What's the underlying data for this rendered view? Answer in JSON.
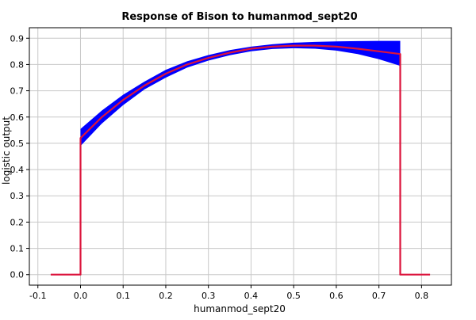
{
  "chart_data": {
    "type": "line",
    "title": "Response of Bison to humanmod_sept20",
    "xlabel": "humanmod_sept20",
    "ylabel": "logistic output",
    "xlim": [
      -0.12,
      0.87
    ],
    "ylim": [
      -0.04,
      0.94
    ],
    "grid": true,
    "x_ticks": [
      -0.1,
      0.0,
      0.1,
      0.2,
      0.3,
      0.4,
      0.5,
      0.6,
      0.7,
      0.8
    ],
    "y_ticks": [
      0.0,
      0.1,
      0.2,
      0.3,
      0.4,
      0.5,
      0.6,
      0.7,
      0.8,
      0.9
    ],
    "colors": {
      "mean": "#dc143c",
      "band": "#0000ff"
    },
    "series": [
      {
        "role": "mean",
        "x": [
          -0.07,
          0.0,
          0.0,
          0.05,
          0.1,
          0.15,
          0.2,
          0.25,
          0.3,
          0.35,
          0.4,
          0.45,
          0.5,
          0.55,
          0.6,
          0.65,
          0.7,
          0.75,
          0.75,
          0.82
        ],
        "y": [
          0.0,
          0.0,
          0.52,
          0.6,
          0.665,
          0.72,
          0.765,
          0.8,
          0.825,
          0.845,
          0.86,
          0.868,
          0.872,
          0.872,
          0.868,
          0.86,
          0.85,
          0.84,
          0.0,
          0.0
        ]
      },
      {
        "role": "band",
        "x": [
          0.0,
          0.05,
          0.1,
          0.15,
          0.2,
          0.25,
          0.3,
          0.35,
          0.4,
          0.45,
          0.5,
          0.55,
          0.6,
          0.65,
          0.7,
          0.75
        ],
        "upper": [
          0.555,
          0.625,
          0.685,
          0.735,
          0.78,
          0.812,
          0.836,
          0.855,
          0.868,
          0.877,
          0.883,
          0.886,
          0.888,
          0.889,
          0.89,
          0.89
        ],
        "lower": [
          0.49,
          0.575,
          0.645,
          0.705,
          0.75,
          0.788,
          0.815,
          0.835,
          0.85,
          0.859,
          0.862,
          0.86,
          0.853,
          0.84,
          0.82,
          0.795
        ]
      }
    ]
  }
}
